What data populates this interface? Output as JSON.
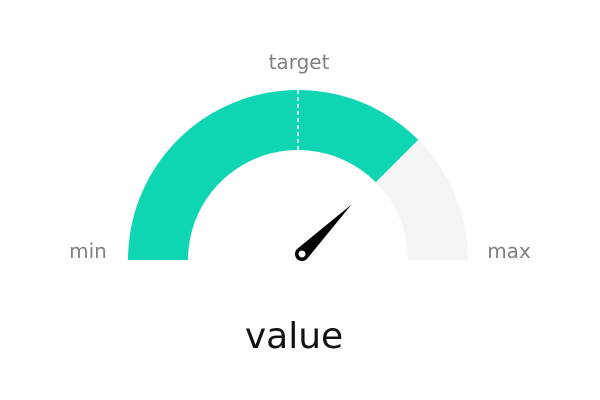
{
  "chart_data": {
    "type": "gauge",
    "min_label": "min",
    "max_label": "max",
    "target_label": "target",
    "value_label": "value",
    "range": [
      0,
      1
    ],
    "value": 0.75,
    "target": 0.5,
    "colors": {
      "fill": "#0fd5b3",
      "track": "#f4f4f4",
      "needle": "#000000",
      "target_marker": "#ffffff"
    }
  }
}
